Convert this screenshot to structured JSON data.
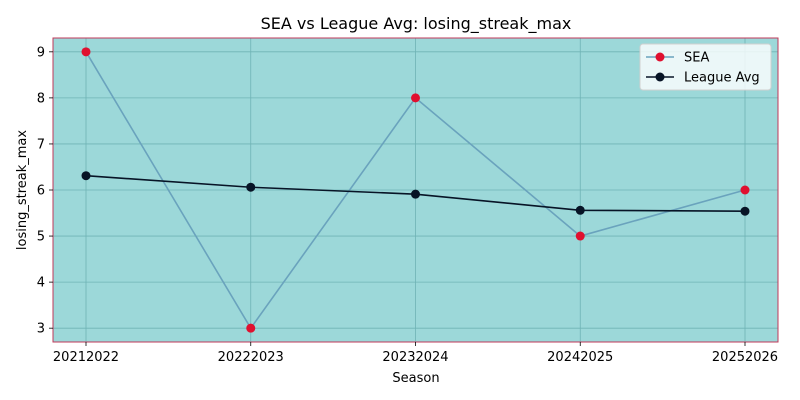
{
  "chart_data": {
    "type": "line",
    "title": "SEA vs League Avg: losing_streak_max",
    "xlabel": "Season",
    "ylabel": "losing_streak_max",
    "categories": [
      "20212022",
      "20222023",
      "20232024",
      "20242025",
      "20252026"
    ],
    "ylim": [
      2.7,
      9.3
    ],
    "yticks": [
      3,
      4,
      5,
      6,
      7,
      8,
      9
    ],
    "grid": true,
    "legend_position": "top-right",
    "series": [
      {
        "name": "SEA",
        "values": [
          9,
          3,
          8,
          5,
          6
        ],
        "line_color": "#6aa3bd",
        "marker_color": "#e0102f"
      },
      {
        "name": "League Avg",
        "values": [
          6.31,
          6.06,
          5.91,
          5.56,
          5.54
        ],
        "line_color": "#071426",
        "marker_color": "#071426"
      }
    ],
    "colors": {
      "plot_background": "#9cd8d9",
      "plot_border": "#c0395a",
      "grid": "#6fb3b5"
    }
  }
}
